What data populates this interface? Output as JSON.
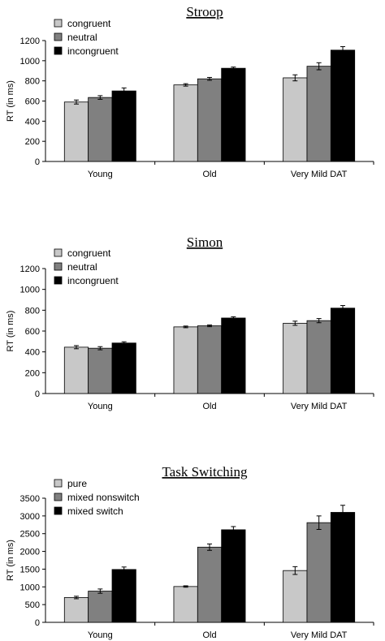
{
  "chart_data": [
    {
      "type": "bar",
      "title": "Stroop",
      "ylabel": "RT (in ms)",
      "xlabel": "",
      "ylim": [
        0,
        1200
      ],
      "yticks": [
        0,
        200,
        400,
        600,
        800,
        1000,
        1200
      ],
      "categories": [
        "Young",
        "Old",
        "Very Mild DAT"
      ],
      "legend_position": "top-left",
      "series": [
        {
          "name": "congruent",
          "color": "#c8c8c8",
          "values": [
            590,
            760,
            830
          ],
          "errors": [
            20,
            12,
            30
          ]
        },
        {
          "name": "neutral",
          "color": "#808080",
          "values": [
            635,
            820,
            945
          ],
          "errors": [
            18,
            14,
            35
          ]
        },
        {
          "name": "incongruent",
          "color": "#000000",
          "values": [
            700,
            925,
            1105
          ],
          "errors": [
            30,
            12,
            35
          ]
        }
      ]
    },
    {
      "type": "bar",
      "title": "Simon",
      "ylabel": "RT (in ms)",
      "xlabel": "",
      "ylim": [
        0,
        1200
      ],
      "yticks": [
        0,
        200,
        400,
        600,
        800,
        1000,
        1200
      ],
      "categories": [
        "Young",
        "Old",
        "Very Mild DAT"
      ],
      "legend_position": "top-left",
      "series": [
        {
          "name": "congruent",
          "color": "#c8c8c8",
          "values": [
            445,
            640,
            675
          ],
          "errors": [
            15,
            8,
            20
          ]
        },
        {
          "name": "neutral",
          "color": "#808080",
          "values": [
            435,
            650,
            700
          ],
          "errors": [
            15,
            8,
            20
          ]
        },
        {
          "name": "incongruent",
          "color": "#000000",
          "values": [
            485,
            725,
            820
          ],
          "errors": [
            12,
            12,
            25
          ]
        }
      ]
    },
    {
      "type": "bar",
      "title": "Task Switching",
      "ylabel": "RT (in ms)",
      "xlabel": "",
      "ylim": [
        0,
        3500
      ],
      "yticks": [
        0,
        500,
        1000,
        1500,
        2000,
        2500,
        3000,
        3500
      ],
      "categories": [
        "Young",
        "Old",
        "Very Mild DAT"
      ],
      "legend_position": "top-left",
      "series": [
        {
          "name": "pure",
          "color": "#c8c8c8",
          "values": [
            700,
            1010,
            1460
          ],
          "errors": [
            35,
            20,
            110
          ]
        },
        {
          "name": "mixed nonswitch",
          "color": "#808080",
          "values": [
            880,
            2120,
            2810
          ],
          "errors": [
            60,
            90,
            190
          ]
        },
        {
          "name": "mixed switch",
          "color": "#000000",
          "values": [
            1490,
            2610,
            3100
          ],
          "errors": [
            70,
            90,
            200
          ]
        }
      ]
    }
  ]
}
